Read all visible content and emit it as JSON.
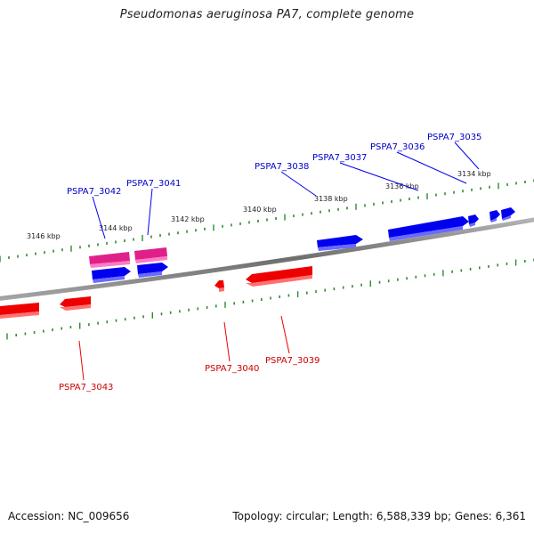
{
  "title": "Pseudomonas aeruginosa PA7, complete genome",
  "footer": {
    "accession": "Accession: NC_009656",
    "topology": "Topology: circular; Length: 6,588,339 bp; Genes: 6,361"
  },
  "colors": {
    "forward_gene": "#0000ee",
    "reverse_gene": "#ee0000",
    "highlight_gene": "#e0208a",
    "backbone": "#808080",
    "tick": "#2e8b2e"
  },
  "scale_labels": [
    "3134 kbp",
    "3136 kbp",
    "3138 kbp",
    "3140 kbp",
    "3142 kbp",
    "3144 kbp",
    "3146 kbp"
  ],
  "gene_labels": {
    "forward": [
      "PSPA7_3035",
      "PSPA7_3036",
      "PSPA7_3037",
      "PSPA7_3038",
      "PSPA7_3041",
      "PSPA7_3042"
    ],
    "reverse": [
      "PSPA7_3039",
      "PSPA7_3040",
      "PSPA7_3043"
    ]
  }
}
